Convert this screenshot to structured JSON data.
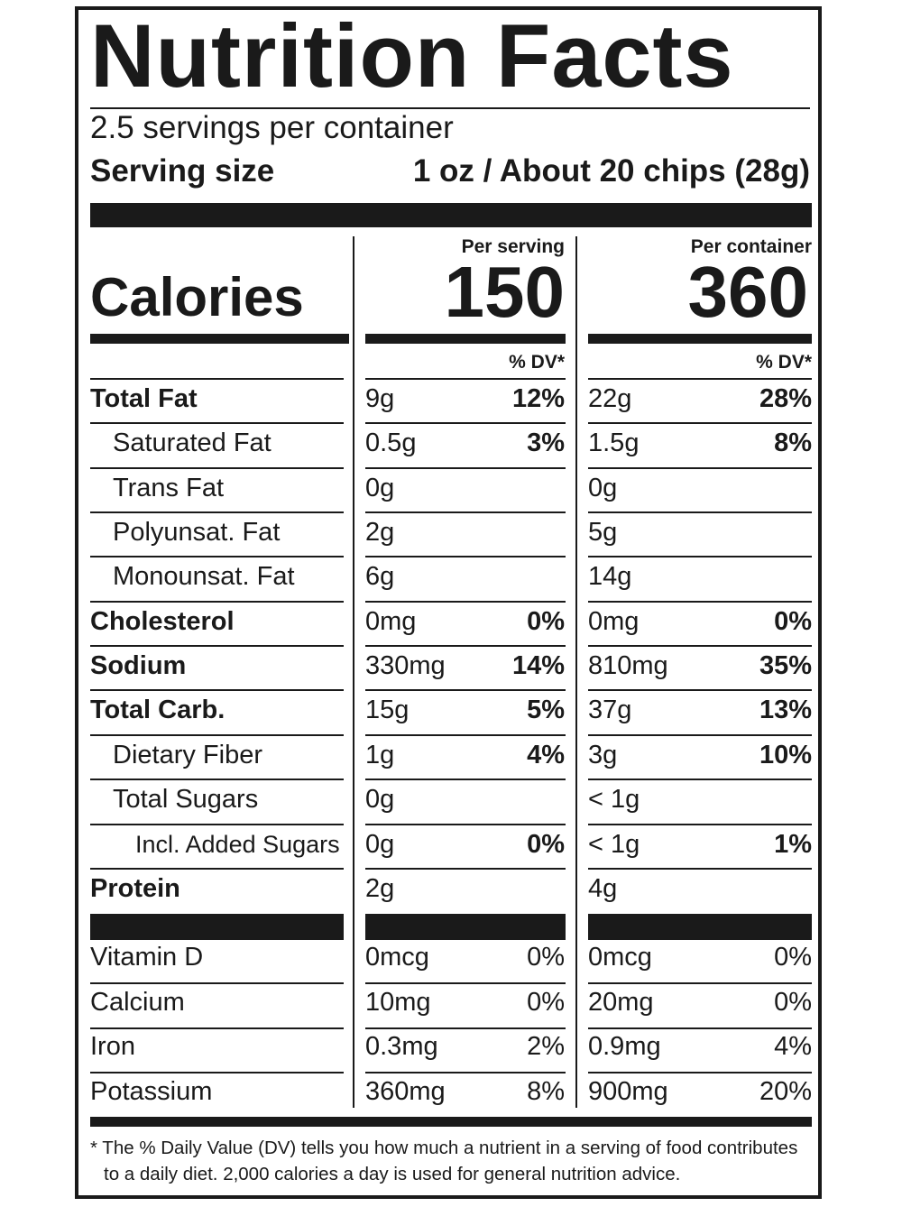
{
  "title": "Nutrition Facts",
  "servings_per_container": "2.5 servings per container",
  "serving_size": {
    "label": "Serving size",
    "value": "1 oz / About 20 chips (28g)"
  },
  "columns": {
    "per_serving": {
      "header": "Per serving",
      "calories": "150",
      "dv_header": "% DV*"
    },
    "per_container": {
      "header": "Per container",
      "calories": "360",
      "dv_header": "% DV*"
    }
  },
  "calories_label": "Calories",
  "nutrients": [
    {
      "name": "Total Fat",
      "bold": true,
      "indent": 0,
      "s_amt": "9g",
      "s_dv": "12%",
      "c_amt": "22g",
      "c_dv": "28%"
    },
    {
      "name": "Saturated Fat",
      "bold": false,
      "indent": 1,
      "s_amt": "0.5g",
      "s_dv": "3%",
      "c_amt": "1.5g",
      "c_dv": "8%"
    },
    {
      "name": "Trans Fat",
      "bold": false,
      "indent": 1,
      "s_amt": "0g",
      "s_dv": "",
      "c_amt": "0g",
      "c_dv": ""
    },
    {
      "name": "Polyunsat. Fat",
      "bold": false,
      "indent": 1,
      "s_amt": "2g",
      "s_dv": "",
      "c_amt": "5g",
      "c_dv": ""
    },
    {
      "name": "Monounsat. Fat",
      "bold": false,
      "indent": 1,
      "s_amt": "6g",
      "s_dv": "",
      "c_amt": "14g",
      "c_dv": ""
    },
    {
      "name": "Cholesterol",
      "bold": true,
      "indent": 0,
      "s_amt": "0mg",
      "s_dv": "0%",
      "c_amt": "0mg",
      "c_dv": "0%"
    },
    {
      "name": "Sodium",
      "bold": true,
      "indent": 0,
      "s_amt": "330mg",
      "s_dv": "14%",
      "c_amt": "810mg",
      "c_dv": "35%"
    },
    {
      "name": "Total Carb.",
      "bold": true,
      "indent": 0,
      "s_amt": "15g",
      "s_dv": "5%",
      "c_amt": "37g",
      "c_dv": "13%"
    },
    {
      "name": "Dietary Fiber",
      "bold": false,
      "indent": 1,
      "s_amt": "1g",
      "s_dv": "4%",
      "c_amt": "3g",
      "c_dv": "10%"
    },
    {
      "name": "Total Sugars",
      "bold": false,
      "indent": 1,
      "s_amt": "0g",
      "s_dv": "",
      "c_amt": "< 1g",
      "c_dv": ""
    },
    {
      "name": "Incl. Added Sugars",
      "bold": false,
      "indent": 2,
      "s_amt": "0g",
      "s_dv": "0%",
      "c_amt": "< 1g",
      "c_dv": "1%"
    },
    {
      "name": "Protein",
      "bold": true,
      "indent": 0,
      "s_amt": "2g",
      "s_dv": "",
      "c_amt": "4g",
      "c_dv": ""
    }
  ],
  "vitamins": [
    {
      "name": "Vitamin D",
      "s_amt": "0mcg",
      "s_dv": "0%",
      "c_amt": "0mcg",
      "c_dv": "0%"
    },
    {
      "name": "Calcium",
      "s_amt": "10mg",
      "s_dv": "0%",
      "c_amt": "20mg",
      "c_dv": "0%"
    },
    {
      "name": "Iron",
      "s_amt": "0.3mg",
      "s_dv": "2%",
      "c_amt": "0.9mg",
      "c_dv": "4%"
    },
    {
      "name": "Potassium",
      "s_amt": "360mg",
      "s_dv": "8%",
      "c_amt": "900mg",
      "c_dv": "20%"
    }
  ],
  "footnote": {
    "line1": "* The % Daily Value (DV) tells you how much a nutrient in a serving of food contributes",
    "line2": "to a daily diet. 2,000 calories a day is used for general nutrition advice."
  }
}
